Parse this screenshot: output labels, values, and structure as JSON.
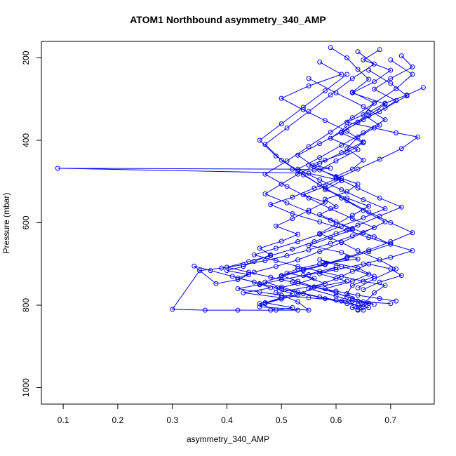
{
  "chart_data": {
    "type": "scatter",
    "title": "ATOM1 Northbound asymmetry_340_AMP",
    "xlabel": "asymmetry_340_AMP",
    "ylabel": "Pressure (mbar)",
    "xlim": [
      0.06,
      0.78
    ],
    "ylim": [
      1040,
      160
    ],
    "y_reversed": true,
    "grid": false,
    "legend": "none",
    "marker": "open-circle",
    "connected": true,
    "x_ticks": [
      0.1,
      0.2,
      0.3,
      0.4,
      0.5,
      0.6,
      0.7
    ],
    "y_ticks": [
      200,
      400,
      600,
      800,
      1000
    ],
    "color": "#0000ff",
    "series": [
      {
        "x": [
          0.59,
          0.62,
          0.64,
          0.66,
          0.63,
          0.67,
          0.65,
          0.68,
          0.64,
          0.62,
          0.65,
          0.63,
          0.6,
          0.64,
          0.62,
          0.58,
          0.6,
          0.57,
          0.6,
          0.63,
          0.59,
          0.55,
          0.61,
          0.64,
          0.57,
          0.53,
          0.51,
          0.56,
          0.53,
          0.49,
          0.52,
          0.5,
          0.47,
          0.46,
          0.55,
          0.53,
          0.49,
          0.58,
          0.54,
          0.6,
          0.57,
          0.62,
          0.55,
          0.6,
          0.63,
          0.67,
          0.62,
          0.58,
          0.63,
          0.66,
          0.61,
          0.57,
          0.64,
          0.67,
          0.63,
          0.62,
          0.64,
          0.65,
          0.66,
          0.63,
          0.64,
          0.65
        ],
        "y": [
          175,
          200,
          228,
          252,
          283,
          310,
          338,
          363,
          392,
          420,
          448,
          470,
          488,
          506,
          525,
          543,
          561,
          580,
          598,
          617,
          636,
          655,
          672,
          688,
          700,
          712,
          722,
          735,
          748,
          760,
          772,
          785,
          796,
          804,
          812,
          792,
          770,
          748,
          728,
          708,
          724,
          742,
          760,
          778,
          790,
          798,
          780,
          760,
          742,
          725,
          706,
          690,
          710,
          730,
          752,
          772,
          790,
          805,
          795,
          806,
          810,
          812
        ]
      },
      {
        "x": [
          0.68,
          0.65,
          0.7,
          0.67,
          0.63,
          0.69,
          0.66,
          0.62,
          0.59,
          0.64,
          0.6,
          0.57,
          0.61,
          0.58,
          0.54,
          0.58,
          0.55,
          0.52,
          0.49,
          0.53,
          0.5,
          0.46,
          0.48,
          0.45,
          0.43,
          0.4,
          0.44,
          0.42,
          0.38,
          0.34,
          0.37,
          0.41,
          0.45,
          0.48,
          0.43,
          0.5,
          0.47,
          0.52,
          0.49,
          0.46,
          0.53,
          0.56,
          0.6,
          0.63,
          0.66,
          0.7,
          0.72,
          0.68,
          0.65
        ],
        "y": [
          180,
          205,
          230,
          258,
          285,
          312,
          340,
          366,
          395,
          423,
          450,
          472,
          492,
          512,
          532,
          550,
          570,
          590,
          608,
          628,
          645,
          662,
          678,
          694,
          706,
          716,
          726,
          738,
          748,
          705,
          716,
          730,
          744,
          758,
          770,
          782,
          794,
          806,
          812,
          796,
          776,
          756,
          736,
          718,
          700,
          712,
          728,
          744,
          762
        ]
      },
      {
        "x": [
          0.72,
          0.74,
          0.7,
          0.67,
          0.71,
          0.68,
          0.64,
          0.61,
          0.65,
          0.62,
          0.58,
          0.55,
          0.59,
          0.56,
          0.52,
          0.09,
          0.55,
          0.61,
          0.58,
          0.62,
          0.66,
          0.63,
          0.6,
          0.57,
          0.61,
          0.64,
          0.68,
          0.71,
          0.67,
          0.64
        ],
        "y": [
          195,
          222,
          250,
          276,
          304,
          330,
          356,
          382,
          406,
          430,
          448,
          460,
          468,
          472,
          470,
          468,
          480,
          498,
          520,
          540,
          560,
          582,
          604,
          626,
          648,
          668,
          690,
          712,
          736,
          758
        ]
      },
      {
        "x": [
          0.76,
          0.73,
          0.69,
          0.66,
          0.62,
          0.67,
          0.71,
          0.75,
          0.72,
          0.68,
          0.64,
          0.6,
          0.56,
          0.52,
          0.48,
          0.52,
          0.57,
          0.62,
          0.66,
          0.7,
          0.74,
          0.7,
          0.65,
          0.6,
          0.55,
          0.5,
          0.46,
          0.42,
          0.46,
          0.5,
          0.55,
          0.6,
          0.65,
          0.7
        ],
        "y": [
          272,
          290,
          310,
          332,
          356,
          370,
          382,
          392,
          420,
          446,
          470,
          494,
          516,
          538,
          556,
          578,
          598,
          618,
          636,
          652,
          668,
          684,
          700,
          714,
          726,
          738,
          750,
          760,
          768,
          776,
          782,
          788,
          792,
          796
        ]
      },
      {
        "x": [
          0.57,
          0.61,
          0.55,
          0.5,
          0.54,
          0.58,
          0.62,
          0.65,
          0.61,
          0.57,
          0.53,
          0.5,
          0.47,
          0.51,
          0.55,
          0.59,
          0.63,
          0.67,
          0.7,
          0.66,
          0.62,
          0.58,
          0.54,
          0.5,
          0.47,
          0.5,
          0.53,
          0.57,
          0.61,
          0.64
        ],
        "y": [
          210,
          240,
          268,
          298,
          326,
          352,
          378,
          404,
          430,
          456,
          482,
          506,
          530,
          552,
          574,
          594,
          614,
          634,
          652,
          670,
          686,
          702,
          716,
          730,
          744,
          756,
          768,
          780,
          790,
          800
        ]
      },
      {
        "x": [
          0.66,
          0.7,
          0.73,
          0.69,
          0.65,
          0.61,
          0.57,
          0.53,
          0.56,
          0.6,
          0.64,
          0.68,
          0.72,
          0.68,
          0.64,
          0.6,
          0.56,
          0.52,
          0.48,
          0.44,
          0.4,
          0.44,
          0.48,
          0.52,
          0.56,
          0.6,
          0.64,
          0.68,
          0.71
        ],
        "y": [
          230,
          262,
          292,
          322,
          350,
          380,
          408,
          436,
          464,
          490,
          516,
          540,
          562,
          584,
          606,
          626,
          646,
          664,
          680,
          694,
          708,
          720,
          732,
          744,
          756,
          766,
          776,
          784,
          790
        ]
      },
      {
        "x": [
          0.62,
          0.58,
          0.54,
          0.5,
          0.46,
          0.49,
          0.53,
          0.57,
          0.61,
          0.65,
          0.69,
          0.65,
          0.61,
          0.57,
          0.53,
          0.49,
          0.45,
          0.42,
          0.46,
          0.5,
          0.54,
          0.58,
          0.62,
          0.66
        ],
        "y": [
          240,
          280,
          320,
          360,
          400,
          438,
          474,
          508,
          540,
          570,
          598,
          624,
          648,
          670,
          690,
          706,
          720,
          734,
          748,
          760,
          772,
          784,
          796,
          806
        ]
      },
      {
        "x": [
          0.64,
          0.67,
          0.63,
          0.59,
          0.55,
          0.51,
          0.47,
          0.5,
          0.54,
          0.58,
          0.62,
          0.66,
          0.7,
          0.74,
          0.7,
          0.66,
          0.62,
          0.58,
          0.54,
          0.5,
          0.53,
          0.56,
          0.6,
          0.63
        ],
        "y": [
          185,
          215,
          250,
          290,
          330,
          370,
          410,
          448,
          484,
          516,
          546,
          574,
          600,
          624,
          646,
          666,
          684,
          700,
          714,
          728,
          742,
          756,
          770,
          784
        ]
      },
      {
        "x": [
          0.7,
          0.74,
          0.71,
          0.67,
          0.63,
          0.59,
          0.55,
          0.51,
          0.47,
          0.51,
          0.55,
          0.59,
          0.63,
          0.67,
          0.63,
          0.59,
          0.55,
          0.51,
          0.47,
          0.43,
          0.39,
          0.35,
          0.3,
          0.36,
          0.42,
          0.48,
          0.53
        ],
        "y": [
          205,
          240,
          275,
          310,
          345,
          380,
          415,
          450,
          482,
          512,
          540,
          566,
          590,
          612,
          632,
          650,
          666,
          680,
          692,
          702,
          710,
          716,
          810,
          812,
          812,
          812,
          812
        ]
      },
      {
        "x": [
          0.55,
          0.6,
          0.65,
          0.69,
          0.65,
          0.61,
          0.57,
          0.53,
          0.57,
          0.61,
          0.65,
          0.69,
          0.65,
          0.61,
          0.57,
          0.53,
          0.49,
          0.45,
          0.49,
          0.53,
          0.57,
          0.61,
          0.65,
          0.69,
          0.67,
          0.64
        ],
        "y": [
          250,
          285,
          318,
          350,
          382,
          412,
          442,
          470,
          496,
          520,
          544,
          566,
          588,
          608,
          628,
          646,
          662,
          678,
          692,
          706,
          718,
          730,
          742,
          752,
          770,
          812
        ]
      }
    ]
  }
}
